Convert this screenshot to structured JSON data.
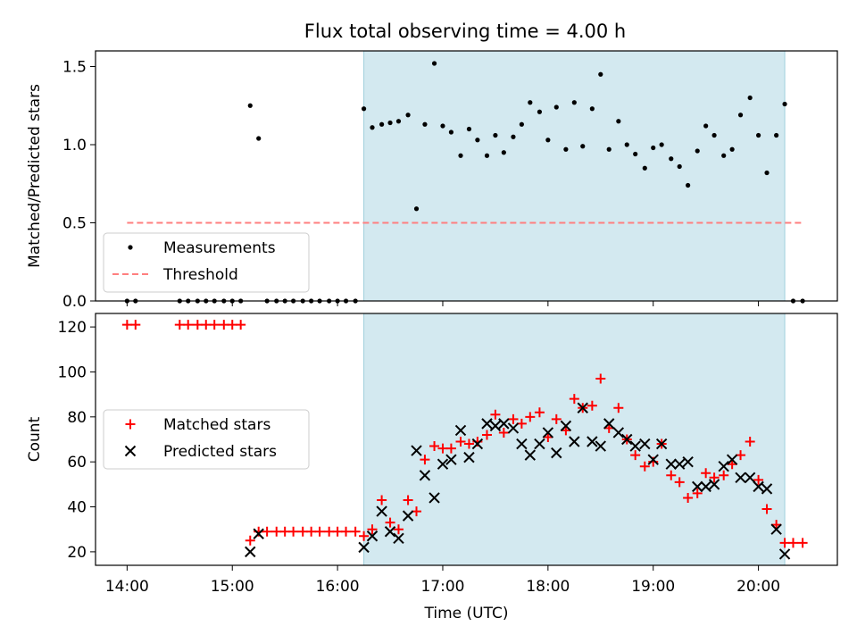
{
  "title": "Flux total observing time = 4.00 h",
  "chart_data": [
    {
      "panel": "top",
      "type": "scatter",
      "ylabel": "Matched/Predicted stars",
      "ylim": [
        0,
        1.6
      ],
      "yticks": [
        "0.0",
        "0.5",
        "1.0",
        "1.5"
      ],
      "xlim_hours": [
        13.7,
        20.75
      ],
      "shaded_span_hours": [
        16.25,
        20.25
      ],
      "shade_color": "#d3e9f0",
      "legend": {
        "position": "lower-left",
        "entries": [
          "Measurements",
          "Threshold"
        ]
      },
      "threshold": {
        "name": "Threshold",
        "y": 0.5,
        "x_start": 14.0,
        "x_end": 20.42,
        "color": "#ff7f7f"
      },
      "series": [
        {
          "name": "Measurements",
          "marker": "dot",
          "color": "#000000",
          "points": [
            [
              14.0,
              0.0
            ],
            [
              14.08,
              0.0
            ],
            [
              14.5,
              0.0
            ],
            [
              14.58,
              0.0
            ],
            [
              14.67,
              0.0
            ],
            [
              14.75,
              0.0
            ],
            [
              14.83,
              0.0
            ],
            [
              14.92,
              0.0
            ],
            [
              15.0,
              0.0
            ],
            [
              15.08,
              0.0
            ],
            [
              15.17,
              1.25
            ],
            [
              15.25,
              1.04
            ],
            [
              15.33,
              0.0
            ],
            [
              15.42,
              0.0
            ],
            [
              15.5,
              0.0
            ],
            [
              15.58,
              0.0
            ],
            [
              15.67,
              0.0
            ],
            [
              15.75,
              0.0
            ],
            [
              15.83,
              0.0
            ],
            [
              15.92,
              0.0
            ],
            [
              16.0,
              0.0
            ],
            [
              16.08,
              0.0
            ],
            [
              16.17,
              0.0
            ],
            [
              16.25,
              1.23
            ],
            [
              16.33,
              1.11
            ],
            [
              16.42,
              1.13
            ],
            [
              16.5,
              1.14
            ],
            [
              16.58,
              1.15
            ],
            [
              16.67,
              1.19
            ],
            [
              16.75,
              0.59
            ],
            [
              16.83,
              1.13
            ],
            [
              16.92,
              1.52
            ],
            [
              17.0,
              1.12
            ],
            [
              17.08,
              1.08
            ],
            [
              17.17,
              0.93
            ],
            [
              17.25,
              1.1
            ],
            [
              17.33,
              1.03
            ],
            [
              17.42,
              0.93
            ],
            [
              17.5,
              1.06
            ],
            [
              17.58,
              0.95
            ],
            [
              17.67,
              1.05
            ],
            [
              17.75,
              1.13
            ],
            [
              17.83,
              1.27
            ],
            [
              17.92,
              1.21
            ],
            [
              18.0,
              1.03
            ],
            [
              18.08,
              1.24
            ],
            [
              18.17,
              0.97
            ],
            [
              18.25,
              1.27
            ],
            [
              18.33,
              0.99
            ],
            [
              18.42,
              1.23
            ],
            [
              18.5,
              1.45
            ],
            [
              18.58,
              0.97
            ],
            [
              18.67,
              1.15
            ],
            [
              18.75,
              1.0
            ],
            [
              18.83,
              0.94
            ],
            [
              18.92,
              0.85
            ],
            [
              19.0,
              0.98
            ],
            [
              19.08,
              1.0
            ],
            [
              19.17,
              0.91
            ],
            [
              19.25,
              0.86
            ],
            [
              19.33,
              0.74
            ],
            [
              19.42,
              0.96
            ],
            [
              19.5,
              1.12
            ],
            [
              19.58,
              1.06
            ],
            [
              19.67,
              0.93
            ],
            [
              19.75,
              0.97
            ],
            [
              19.83,
              1.19
            ],
            [
              19.92,
              1.3
            ],
            [
              20.0,
              1.06
            ],
            [
              20.08,
              0.82
            ],
            [
              20.17,
              1.06
            ],
            [
              20.25,
              1.26
            ],
            [
              20.33,
              0.0
            ],
            [
              20.42,
              0.0
            ]
          ]
        }
      ]
    },
    {
      "panel": "bottom",
      "type": "scatter",
      "xlabel": "Time (UTC)",
      "ylabel": "Count",
      "ylim": [
        14,
        126
      ],
      "yticks": [
        "20",
        "40",
        "60",
        "80",
        "100",
        "120"
      ],
      "xticks": [
        "14:00",
        "15:00",
        "16:00",
        "17:00",
        "18:00",
        "19:00",
        "20:00"
      ],
      "xlim_hours": [
        13.7,
        20.75
      ],
      "shaded_span_hours": [
        16.25,
        20.25
      ],
      "shade_color": "#d3e9f0",
      "legend": {
        "position": "center-left",
        "entries": [
          "Matched stars",
          "Predicted stars"
        ]
      },
      "series": [
        {
          "name": "Matched stars",
          "marker": "plus",
          "color": "#ff0000",
          "points": [
            [
              14.0,
              121
            ],
            [
              14.08,
              121
            ],
            [
              14.5,
              121
            ],
            [
              14.58,
              121
            ],
            [
              14.67,
              121
            ],
            [
              14.75,
              121
            ],
            [
              14.83,
              121
            ],
            [
              14.92,
              121
            ],
            [
              15.0,
              121
            ],
            [
              15.08,
              121
            ],
            [
              15.17,
              25
            ],
            [
              15.25,
              29
            ],
            [
              15.33,
              29
            ],
            [
              15.42,
              29
            ],
            [
              15.5,
              29
            ],
            [
              15.58,
              29
            ],
            [
              15.67,
              29
            ],
            [
              15.75,
              29
            ],
            [
              15.83,
              29
            ],
            [
              15.92,
              29
            ],
            [
              16.0,
              29
            ],
            [
              16.08,
              29
            ],
            [
              16.17,
              29
            ],
            [
              16.25,
              27
            ],
            [
              16.33,
              30
            ],
            [
              16.42,
              43
            ],
            [
              16.5,
              33
            ],
            [
              16.58,
              30
            ],
            [
              16.67,
              43
            ],
            [
              16.75,
              38
            ],
            [
              16.83,
              61
            ],
            [
              16.92,
              67
            ],
            [
              17.0,
              66
            ],
            [
              17.08,
              66
            ],
            [
              17.17,
              69
            ],
            [
              17.25,
              68
            ],
            [
              17.33,
              69
            ],
            [
              17.42,
              72
            ],
            [
              17.5,
              81
            ],
            [
              17.58,
              73
            ],
            [
              17.67,
              79
            ],
            [
              17.75,
              77
            ],
            [
              17.83,
              80
            ],
            [
              17.92,
              82
            ],
            [
              18.0,
              71
            ],
            [
              18.08,
              79
            ],
            [
              18.17,
              74
            ],
            [
              18.25,
              88
            ],
            [
              18.33,
              84
            ],
            [
              18.42,
              85
            ],
            [
              18.5,
              97
            ],
            [
              18.58,
              75
            ],
            [
              18.67,
              84
            ],
            [
              18.75,
              70
            ],
            [
              18.83,
              63
            ],
            [
              18.92,
              58
            ],
            [
              19.0,
              60
            ],
            [
              19.08,
              68
            ],
            [
              19.17,
              54
            ],
            [
              19.25,
              51
            ],
            [
              19.33,
              44
            ],
            [
              19.42,
              46
            ],
            [
              19.5,
              55
            ],
            [
              19.58,
              53
            ],
            [
              19.67,
              54
            ],
            [
              19.75,
              59
            ],
            [
              19.83,
              63
            ],
            [
              19.92,
              69
            ],
            [
              20.0,
              52
            ],
            [
              20.08,
              39
            ],
            [
              20.17,
              32
            ],
            [
              20.25,
              24
            ],
            [
              20.33,
              24
            ],
            [
              20.42,
              24
            ]
          ]
        },
        {
          "name": "Predicted stars",
          "marker": "x",
          "color": "#000000",
          "points": [
            [
              15.17,
              20
            ],
            [
              15.25,
              28
            ],
            [
              16.25,
              22
            ],
            [
              16.33,
              27
            ],
            [
              16.42,
              38
            ],
            [
              16.5,
              29
            ],
            [
              16.58,
              26
            ],
            [
              16.67,
              36
            ],
            [
              16.75,
              65
            ],
            [
              16.83,
              54
            ],
            [
              16.92,
              44
            ],
            [
              17.0,
              59
            ],
            [
              17.08,
              61
            ],
            [
              17.17,
              74
            ],
            [
              17.25,
              62
            ],
            [
              17.33,
              68
            ],
            [
              17.42,
              77
            ],
            [
              17.5,
              76
            ],
            [
              17.58,
              77
            ],
            [
              17.67,
              75
            ],
            [
              17.75,
              68
            ],
            [
              17.83,
              63
            ],
            [
              17.92,
              68
            ],
            [
              18.0,
              73
            ],
            [
              18.08,
              64
            ],
            [
              18.17,
              76
            ],
            [
              18.25,
              69
            ],
            [
              18.33,
              84
            ],
            [
              18.42,
              69
            ],
            [
              18.5,
              67
            ],
            [
              18.58,
              77
            ],
            [
              18.67,
              73
            ],
            [
              18.75,
              70
            ],
            [
              18.83,
              67
            ],
            [
              18.92,
              68
            ],
            [
              19.0,
              61
            ],
            [
              19.08,
              68
            ],
            [
              19.17,
              59
            ],
            [
              19.25,
              59
            ],
            [
              19.33,
              60
            ],
            [
              19.42,
              49
            ],
            [
              19.5,
              49
            ],
            [
              19.58,
              50
            ],
            [
              19.67,
              58
            ],
            [
              19.75,
              61
            ],
            [
              19.83,
              53
            ],
            [
              19.92,
              53
            ],
            [
              20.0,
              49
            ],
            [
              20.08,
              48
            ],
            [
              20.17,
              30
            ],
            [
              20.25,
              19
            ]
          ]
        }
      ]
    }
  ]
}
